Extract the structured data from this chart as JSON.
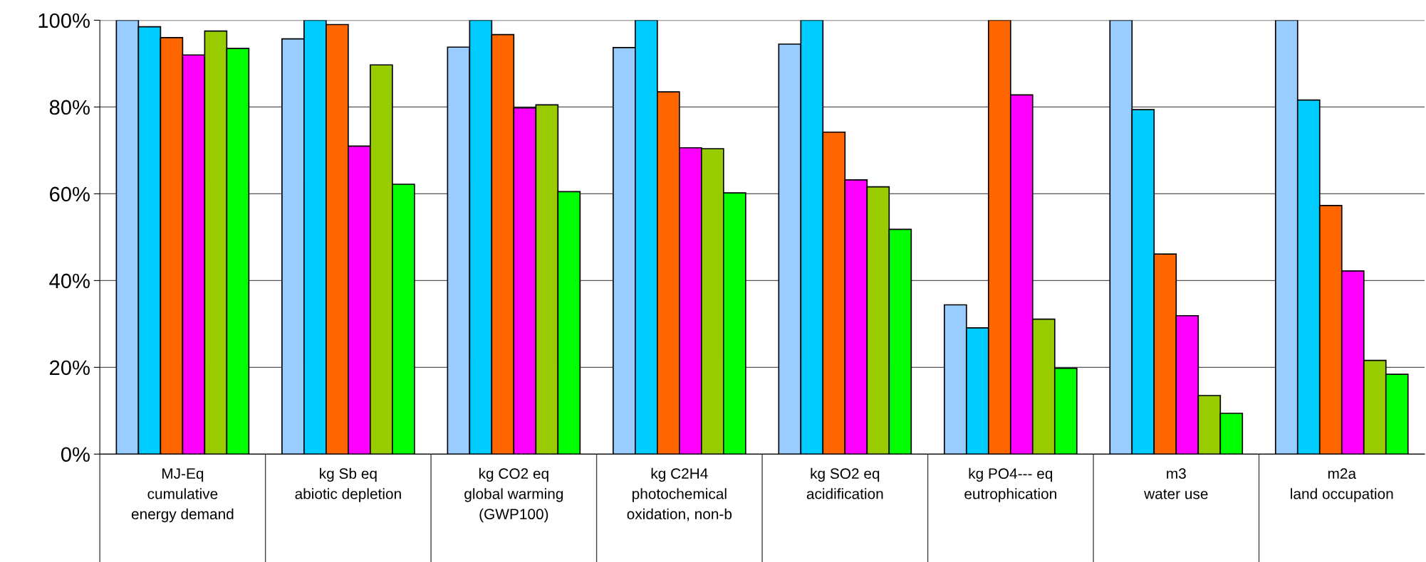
{
  "chart_data": {
    "type": "bar",
    "categories": [
      "MJ-Eq\ncumulative\nenergy demand",
      "kg Sb eq\nabiotic depletion",
      "kg CO2 eq\nglobal warming\n(GWP100)",
      "kg C2H4\nphotochemical\noxidation, non-b",
      "kg SO2 eq\nacidification",
      "kg PO4--- eq\neutrophication",
      "m3\nwater use",
      "m2a\nland occupation"
    ],
    "series": [
      {
        "color": "#99ccff",
        "values": [
          100,
          95.7,
          93.8,
          93.7,
          94.5,
          34.4,
          100,
          100
        ]
      },
      {
        "color": "#00ccff",
        "values": [
          98.5,
          100,
          100,
          100,
          100,
          29.1,
          79.4,
          81.6
        ]
      },
      {
        "color": "#ff6600",
        "values": [
          96,
          99,
          96.7,
          83.5,
          74.2,
          100,
          46.1,
          57.3
        ]
      },
      {
        "color": "#ff00ff",
        "values": [
          92,
          71,
          79.8,
          70.6,
          63.2,
          82.8,
          31.9,
          42.2
        ]
      },
      {
        "color": "#99cc00",
        "values": [
          97.5,
          89.7,
          80.5,
          70.4,
          61.6,
          31.1,
          13.5,
          21.6
        ]
      },
      {
        "color": "#00ff00",
        "values": [
          93.5,
          62.2,
          60.5,
          60.2,
          51.8,
          19.8,
          9.4,
          18.4
        ]
      }
    ],
    "ylim": [
      0,
      100
    ],
    "yticks": [
      {
        "value": 0,
        "label": "0%"
      },
      {
        "value": 20,
        "label": "20%"
      },
      {
        "value": 40,
        "label": "40%"
      },
      {
        "value": 60,
        "label": "60%"
      },
      {
        "value": 80,
        "label": "80%"
      },
      {
        "value": 100,
        "label": "100%"
      }
    ],
    "grid": "y",
    "legend": false
  }
}
